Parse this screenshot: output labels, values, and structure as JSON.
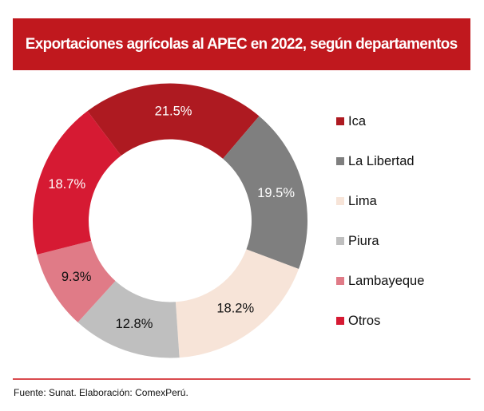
{
  "header": {
    "title": "Exportaciones agrícolas al APEC en 2022, según departamentos"
  },
  "chart_data": {
    "type": "pie",
    "subtype": "donut",
    "title": "Exportaciones agrícolas al APEC en 2022, según departamentos",
    "unit": "%",
    "categories": [
      "Ica",
      "La Libertad",
      "Lima",
      "Piura",
      "Lambayeque",
      "Otros"
    ],
    "values": [
      21.5,
      19.5,
      18.2,
      12.8,
      9.3,
      18.7
    ],
    "data_labels": [
      "21.5%",
      "19.5%",
      "18.2%",
      "12.8%",
      "9.3%",
      "18.7%"
    ],
    "colors": [
      "#AE1A21",
      "#7F7F7F",
      "#F7E4D8",
      "#BFBFBF",
      "#E07B87",
      "#D61A33"
    ],
    "label_colors": [
      "#ffffff",
      "#ffffff",
      "#111111",
      "#111111",
      "#111111",
      "#ffffff"
    ],
    "start_angle_deg": -37,
    "direction": "clockwise",
    "legend_position": "right"
  },
  "legend": {
    "items": [
      {
        "label": "Ica",
        "color": "#AE1A21"
      },
      {
        "label": "La Libertad",
        "color": "#7F7F7F"
      },
      {
        "label": "Lima",
        "color": "#F7E4D8"
      },
      {
        "label": "Piura",
        "color": "#BFBFBF"
      },
      {
        "label": "Lambayeque",
        "color": "#E07B87"
      },
      {
        "label": "Otros",
        "color": "#D61A33"
      }
    ]
  },
  "footer": {
    "source": "Fuente: Sunat. Elaboración: ComexPerú."
  }
}
